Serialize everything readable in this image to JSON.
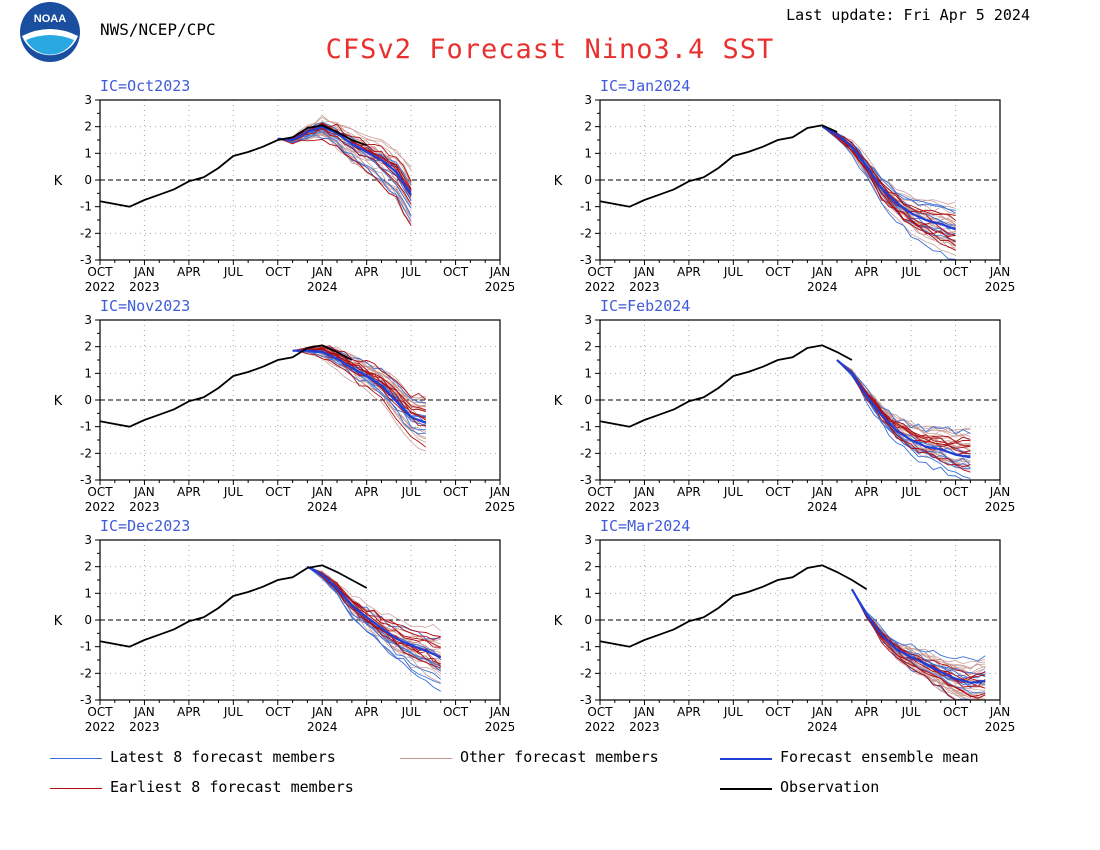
{
  "header": {
    "org": "NWS/NCEP/CPC",
    "last_update": "Last update: Fri Apr 5 2024",
    "title": "CFSv2 Forecast Nino3.4 SST",
    "logo_text": "NOAA"
  },
  "colors": {
    "title": "#e8302e",
    "ic_label": "#3f5bd8",
    "latest_members": "#3a70d8",
    "earliest_members": "#b00d12",
    "other_members": "#c4958e",
    "ensemble_mean": "#1f3fd6",
    "observation": "#000000"
  },
  "legend": [
    {
      "key": "latest",
      "label": "Latest 8 forecast members",
      "style": "latest_members"
    },
    {
      "key": "other",
      "label": "Other forecast members",
      "style": "other_members"
    },
    {
      "key": "mean",
      "label": "Forecast ensemble mean",
      "style": "ensemble_mean"
    },
    {
      "key": "earliest",
      "label": "Earliest 8 forecast members",
      "style": "earliest_members"
    },
    {
      "key": "obs",
      "label": "Observation",
      "style": "observation"
    }
  ],
  "chart_data": {
    "type": "line",
    "ylabel": "K",
    "ylim": [
      -3,
      3
    ],
    "yticks": [
      "3",
      "2",
      "1",
      "0",
      "-1",
      "-2",
      "-3"
    ],
    "xticks": [
      {
        "top": "OCT",
        "bottom": "2022"
      },
      {
        "top": "JAN",
        "bottom": "2023"
      },
      {
        "top": "APR",
        "bottom": ""
      },
      {
        "top": "JUL",
        "bottom": ""
      },
      {
        "top": "OCT",
        "bottom": ""
      },
      {
        "top": "JAN",
        "bottom": "2024"
      },
      {
        "top": "APR",
        "bottom": ""
      },
      {
        "top": "JUL",
        "bottom": ""
      },
      {
        "top": "OCT",
        "bottom": ""
      },
      {
        "top": "JAN",
        "bottom": "2025"
      }
    ],
    "grid": true,
    "zero_line": "dashed",
    "panels": [
      {
        "label": "IC=Oct2023",
        "observation": [
          -0.8,
          -0.9,
          -1.0,
          -0.75,
          -0.55,
          -0.35,
          -0.05,
          0.1,
          0.45,
          0.9,
          1.05,
          1.25,
          1.5,
          1.6,
          1.95,
          2.05,
          1.8,
          1.5,
          1.3
        ],
        "mean": [
          [
            12,
            1.55
          ],
          [
            13,
            1.5
          ],
          [
            14,
            1.8
          ],
          [
            15,
            2.0
          ],
          [
            16,
            1.75
          ],
          [
            17,
            1.35
          ],
          [
            18,
            1.05
          ],
          [
            19,
            0.75
          ],
          [
            20,
            0.3
          ],
          [
            21,
            -0.55
          ]
        ]
      },
      {
        "label": "IC=Jan2024",
        "observation": [
          -0.8,
          -0.9,
          -1.0,
          -0.75,
          -0.55,
          -0.35,
          -0.05,
          0.1,
          0.45,
          0.9,
          1.05,
          1.25,
          1.5,
          1.6,
          1.95,
          2.05,
          1.8
        ],
        "mean": [
          [
            15,
            2.0
          ],
          [
            16,
            1.7
          ],
          [
            17,
            1.25
          ],
          [
            18,
            0.5
          ],
          [
            19,
            -0.3
          ],
          [
            20,
            -0.85
          ],
          [
            21,
            -1.25
          ],
          [
            22,
            -1.5
          ],
          [
            23,
            -1.65
          ],
          [
            24,
            -1.85
          ]
        ]
      },
      {
        "label": "IC=Nov2023",
        "observation": [
          -0.8,
          -0.9,
          -1.0,
          -0.75,
          -0.55,
          -0.35,
          -0.05,
          0.1,
          0.45,
          0.9,
          1.05,
          1.25,
          1.5,
          1.6,
          1.95,
          2.05,
          1.8,
          1.5
        ],
        "mean": [
          [
            13,
            1.85
          ],
          [
            14,
            1.85
          ],
          [
            15,
            1.8
          ],
          [
            16,
            1.55
          ],
          [
            17,
            1.2
          ],
          [
            18,
            0.9
          ],
          [
            19,
            0.55
          ],
          [
            20,
            -0.05
          ],
          [
            21,
            -0.65
          ],
          [
            22,
            -0.85
          ]
        ]
      },
      {
        "label": "IC=Feb2024",
        "observation": [
          -0.8,
          -0.9,
          -1.0,
          -0.75,
          -0.55,
          -0.35,
          -0.05,
          0.1,
          0.45,
          0.9,
          1.05,
          1.25,
          1.5,
          1.6,
          1.95,
          2.05,
          1.8,
          1.5
        ],
        "mean": [
          [
            16,
            1.5
          ],
          [
            17,
            1.0
          ],
          [
            18,
            0.15
          ],
          [
            19,
            -0.55
          ],
          [
            20,
            -1.15
          ],
          [
            21,
            -1.5
          ],
          [
            22,
            -1.75
          ],
          [
            23,
            -1.85
          ],
          [
            24,
            -2.05
          ],
          [
            25,
            -2.15
          ]
        ]
      },
      {
        "label": "IC=Dec2023",
        "observation": [
          -0.8,
          -0.9,
          -1.0,
          -0.75,
          -0.55,
          -0.35,
          -0.05,
          0.1,
          0.45,
          0.9,
          1.05,
          1.25,
          1.5,
          1.6,
          1.95,
          2.05,
          1.8,
          1.5,
          1.2
        ],
        "mean": [
          [
            14,
            2.0
          ],
          [
            15,
            1.7
          ],
          [
            16,
            1.2
          ],
          [
            17,
            0.55
          ],
          [
            18,
            0.1
          ],
          [
            19,
            -0.3
          ],
          [
            20,
            -0.7
          ],
          [
            21,
            -0.95
          ],
          [
            22,
            -1.15
          ],
          [
            23,
            -1.4
          ]
        ]
      },
      {
        "label": "IC=Mar2024",
        "observation": [
          -0.8,
          -0.9,
          -1.0,
          -0.75,
          -0.55,
          -0.35,
          -0.05,
          0.1,
          0.45,
          0.9,
          1.05,
          1.25,
          1.5,
          1.6,
          1.95,
          2.05,
          1.8,
          1.5,
          1.15
        ],
        "mean": [
          [
            17,
            1.15
          ],
          [
            18,
            0.2
          ],
          [
            19,
            -0.55
          ],
          [
            20,
            -1.1
          ],
          [
            21,
            -1.4
          ],
          [
            22,
            -1.65
          ],
          [
            23,
            -1.95
          ],
          [
            24,
            -2.2
          ],
          [
            25,
            -2.35
          ],
          [
            26,
            -2.3
          ]
        ]
      }
    ]
  }
}
